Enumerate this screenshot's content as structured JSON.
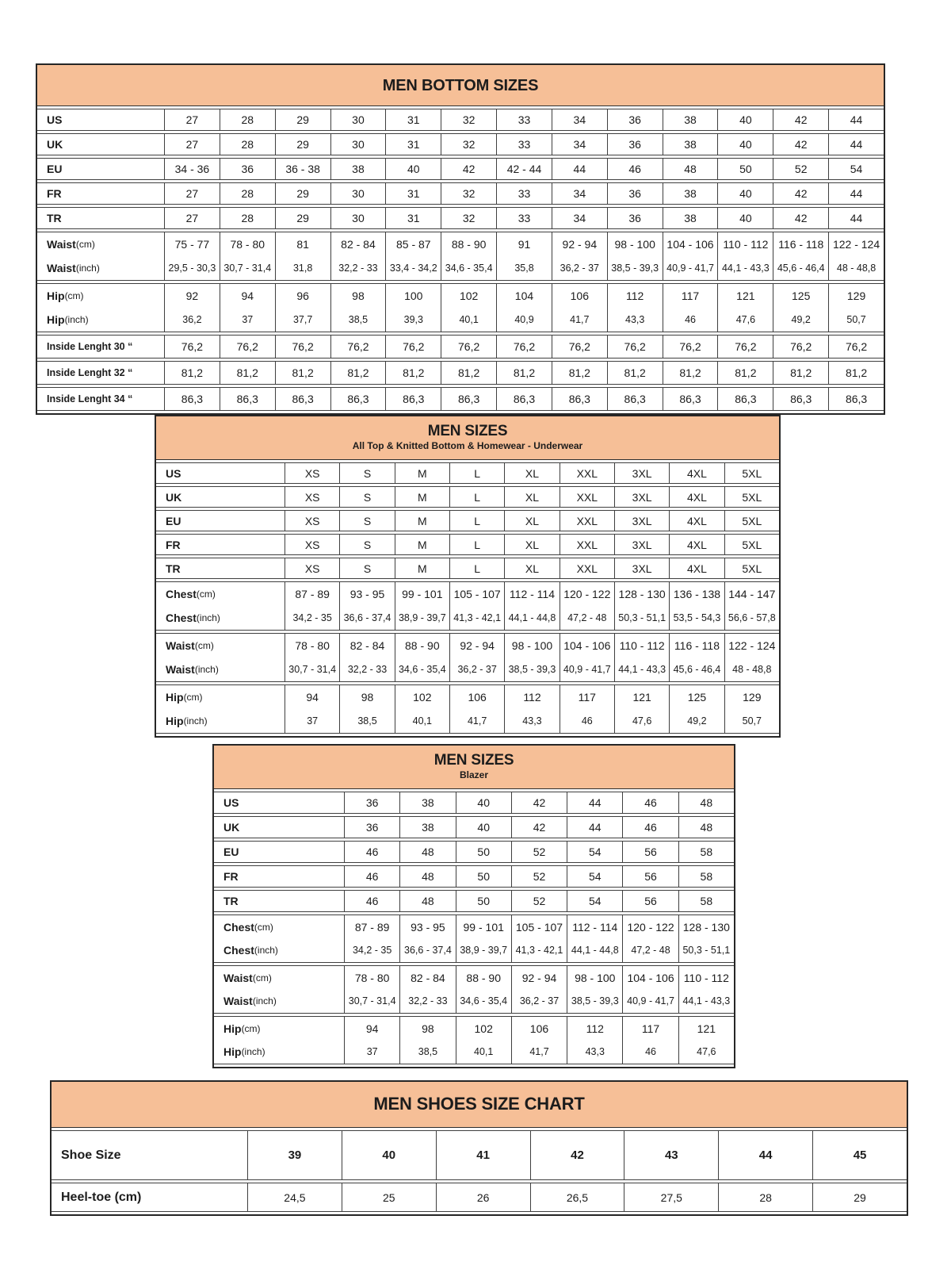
{
  "page": {
    "accent_color": "#f6bf97",
    "border_color": "#3f3f3f",
    "text_color": "#1c1c1c"
  },
  "men_bottom_sizes": {
    "title": "MEN BOTTOM SIZES",
    "rows": [
      {
        "type": "single",
        "label": "US",
        "values": [
          "27",
          "28",
          "29",
          "30",
          "31",
          "32",
          "33",
          "34",
          "36",
          "38",
          "40",
          "42",
          "44"
        ]
      },
      {
        "type": "single",
        "label": "UK",
        "values": [
          "27",
          "28",
          "29",
          "30",
          "31",
          "32",
          "33",
          "34",
          "36",
          "38",
          "40",
          "42",
          "44"
        ]
      },
      {
        "type": "single",
        "label": "EU",
        "values": [
          "34 - 36",
          "36",
          "36 - 38",
          "38",
          "40",
          "42",
          "42 - 44",
          "44",
          "46",
          "48",
          "50",
          "52",
          "54"
        ]
      },
      {
        "type": "single",
        "label": "FR",
        "values": [
          "27",
          "28",
          "29",
          "30",
          "31",
          "32",
          "33",
          "34",
          "36",
          "38",
          "40",
          "42",
          "44"
        ]
      },
      {
        "type": "single",
        "label": "TR",
        "values": [
          "27",
          "28",
          "29",
          "30",
          "31",
          "32",
          "33",
          "34",
          "36",
          "38",
          "40",
          "42",
          "44"
        ]
      },
      {
        "type": "group",
        "top": {
          "label": "Waist",
          "unit": "(cm)",
          "values": [
            "75 - 77",
            "78 - 80",
            "81",
            "82 - 84",
            "85 - 87",
            "88 - 90",
            "91",
            "92 - 94",
            "98 - 100",
            "104 - 106",
            "110 - 112",
            "116 - 118",
            "122 - 124"
          ]
        },
        "bottom": {
          "label": "Waist",
          "unit": "(inch)",
          "values": [
            "29,5 - 30,3",
            "30,7 - 31,4",
            "31,8",
            "32,2 - 33",
            "33,4 - 34,2",
            "34,6 - 35,4",
            "35,8",
            "36,2 - 37",
            "38,5 - 39,3",
            "40,9 - 41,7",
            "44,1 - 43,3",
            "45,6 - 46,4",
            "48 - 48,8"
          ]
        }
      },
      {
        "type": "group",
        "top": {
          "label": "Hip",
          "unit": "(cm)",
          "values": [
            "92",
            "94",
            "96",
            "98",
            "100",
            "102",
            "104",
            "106",
            "112",
            "117",
            "121",
            "125",
            "129"
          ]
        },
        "bottom": {
          "label": "Hip",
          "unit": "(inch)",
          "values": [
            "36,2",
            "37",
            "37,7",
            "38,5",
            "39,3",
            "40,1",
            "40,9",
            "41,7",
            "43,3",
            "46",
            "47,6",
            "49,2",
            "50,7"
          ]
        }
      },
      {
        "type": "single",
        "label": "Inside Lenght 30 “",
        "values": [
          "76,2",
          "76,2",
          "76,2",
          "76,2",
          "76,2",
          "76,2",
          "76,2",
          "76,2",
          "76,2",
          "76,2",
          "76,2",
          "76,2",
          "76,2"
        ]
      },
      {
        "type": "single",
        "label": "Inside Lenght 32 “",
        "values": [
          "81,2",
          "81,2",
          "81,2",
          "81,2",
          "81,2",
          "81,2",
          "81,2",
          "81,2",
          "81,2",
          "81,2",
          "81,2",
          "81,2",
          "81,2"
        ]
      },
      {
        "type": "single",
        "label": "Inside Lenght 34 “",
        "values": [
          "86,3",
          "86,3",
          "86,3",
          "86,3",
          "86,3",
          "86,3",
          "86,3",
          "86,3",
          "86,3",
          "86,3",
          "86,3",
          "86,3",
          "86,3"
        ]
      }
    ]
  },
  "men_sizes_top": {
    "title": "MEN SIZES",
    "subtitle": "All Top & Knitted Bottom & Homewear - Underwear",
    "rows": [
      {
        "type": "single",
        "label": "US",
        "values": [
          "XS",
          "S",
          "M",
          "L",
          "XL",
          "XXL",
          "3XL",
          "4XL",
          "5XL"
        ]
      },
      {
        "type": "single",
        "label": "UK",
        "values": [
          "XS",
          "S",
          "M",
          "L",
          "XL",
          "XXL",
          "3XL",
          "4XL",
          "5XL"
        ]
      },
      {
        "type": "single",
        "label": "EU",
        "values": [
          "XS",
          "S",
          "M",
          "L",
          "XL",
          "XXL",
          "3XL",
          "4XL",
          "5XL"
        ]
      },
      {
        "type": "single",
        "label": "FR",
        "values": [
          "XS",
          "S",
          "M",
          "L",
          "XL",
          "XXL",
          "3XL",
          "4XL",
          "5XL"
        ]
      },
      {
        "type": "single",
        "label": "TR",
        "values": [
          "XS",
          "S",
          "M",
          "L",
          "XL",
          "XXL",
          "3XL",
          "4XL",
          "5XL"
        ]
      },
      {
        "type": "group",
        "top": {
          "label": "Chest",
          "unit": "(cm)",
          "values": [
            "87 - 89",
            "93 - 95",
            "99 - 101",
            "105 - 107",
            "112 - 114",
            "120 - 122",
            "128 - 130",
            "136 - 138",
            "144 - 147"
          ]
        },
        "bottom": {
          "label": "Chest",
          "unit": "(inch)",
          "values": [
            "34,2 - 35",
            "36,6 - 37,4",
            "38,9 - 39,7",
            "41,3 - 42,1",
            "44,1 - 44,8",
            "47,2 - 48",
            "50,3 - 51,1",
            "53,5 - 54,3",
            "56,6 - 57,8"
          ]
        }
      },
      {
        "type": "group",
        "top": {
          "label": "Waist",
          "unit": "(cm)",
          "values": [
            "78 - 80",
            "82 - 84",
            "88 - 90",
            "92 - 94",
            "98 - 100",
            "104 - 106",
            "110 - 112",
            "116 - 118",
            "122 - 124"
          ]
        },
        "bottom": {
          "label": "Waist",
          "unit": "(inch)",
          "values": [
            "30,7 - 31,4",
            "32,2 - 33",
            "34,6 - 35,4",
            "36,2 - 37",
            "38,5 - 39,3",
            "40,9 - 41,7",
            "44,1 - 43,3",
            "45,6 - 46,4",
            "48 - 48,8"
          ]
        }
      },
      {
        "type": "group",
        "top": {
          "label": "Hip",
          "unit": "(cm)",
          "values": [
            "94",
            "98",
            "102",
            "106",
            "112",
            "117",
            "121",
            "125",
            "129"
          ]
        },
        "bottom": {
          "label": "Hip",
          "unit": "(inch)",
          "values": [
            "37",
            "38,5",
            "40,1",
            "41,7",
            "43,3",
            "46",
            "47,6",
            "49,2",
            "50,7"
          ]
        }
      }
    ]
  },
  "men_sizes_blazer": {
    "title": "MEN SIZES",
    "subtitle": "Blazer",
    "rows": [
      {
        "type": "single",
        "label": "US",
        "values": [
          "36",
          "38",
          "40",
          "42",
          "44",
          "46",
          "48"
        ]
      },
      {
        "type": "single",
        "label": "UK",
        "values": [
          "36",
          "38",
          "40",
          "42",
          "44",
          "46",
          "48"
        ]
      },
      {
        "type": "single",
        "label": "EU",
        "values": [
          "46",
          "48",
          "50",
          "52",
          "54",
          "56",
          "58"
        ]
      },
      {
        "type": "single",
        "label": "FR",
        "values": [
          "46",
          "48",
          "50",
          "52",
          "54",
          "56",
          "58"
        ]
      },
      {
        "type": "single",
        "label": "TR",
        "values": [
          "46",
          "48",
          "50",
          "52",
          "54",
          "56",
          "58"
        ]
      },
      {
        "type": "group",
        "top": {
          "label": "Chest",
          "unit": "(cm)",
          "values": [
            "87 - 89",
            "93 - 95",
            "99 - 101",
            "105 - 107",
            "112 - 114",
            "120 - 122",
            "128 - 130"
          ]
        },
        "bottom": {
          "label": "Chest",
          "unit": "(inch)",
          "values": [
            "34,2 - 35",
            "36,6 - 37,4",
            "38,9 - 39,7",
            "41,3 - 42,1",
            "44,1 - 44,8",
            "47,2 - 48",
            "50,3 - 51,1"
          ]
        }
      },
      {
        "type": "group",
        "top": {
          "label": "Waist",
          "unit": "(cm)",
          "values": [
            "78 - 80",
            "82 - 84",
            "88 - 90",
            "92 - 94",
            "98 - 100",
            "104 - 106",
            "110 - 112"
          ]
        },
        "bottom": {
          "label": "Waist",
          "unit": "(inch)",
          "values": [
            "30,7 - 31,4",
            "32,2 - 33",
            "34,6 - 35,4",
            "36,2 - 37",
            "38,5 - 39,3",
            "40,9 - 41,7",
            "44,1 - 43,3"
          ]
        }
      },
      {
        "type": "group",
        "top": {
          "label": "Hip",
          "unit": "(cm)",
          "values": [
            "94",
            "98",
            "102",
            "106",
            "112",
            "117",
            "121"
          ]
        },
        "bottom": {
          "label": "Hip",
          "unit": "(inch)",
          "values": [
            "37",
            "38,5",
            "40,1",
            "41,7",
            "43,3",
            "46",
            "47,6"
          ]
        }
      }
    ]
  },
  "men_shoes": {
    "title": "MEN SHOES SIZE CHART",
    "rows": [
      {
        "type": "single",
        "label": "Shoe Size",
        "values": [
          "39",
          "40",
          "41",
          "42",
          "43",
          "44",
          "45"
        ]
      },
      {
        "type": "single",
        "label": "Heel-toe (cm)",
        "values": [
          "24,5",
          "25",
          "26",
          "26,5",
          "27,5",
          "28",
          "29"
        ]
      }
    ]
  }
}
